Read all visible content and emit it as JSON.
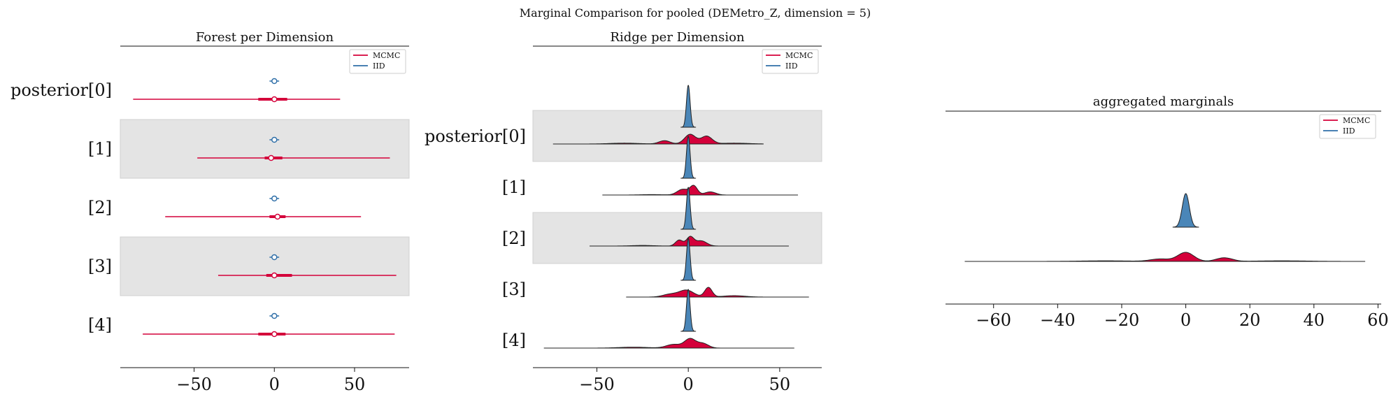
{
  "suptitle": "Marginal Comparison for pooled (DEMetro_Z, dimension = 5)",
  "colors": {
    "mcmc": "#d4003a",
    "iid": "#2f6fa8",
    "iid_fill": "#4a86b8",
    "band": "#e4e4e4",
    "outline": "#222222"
  },
  "chart_data": [
    {
      "type": "forest",
      "title": "Forest per Dimension",
      "row_labels": [
        "posterior[0]",
        "[1]",
        "[2]",
        "[3]",
        "[4]"
      ],
      "xlim": [
        -96,
        84
      ],
      "xticks": [
        -50,
        0,
        50
      ],
      "xtick_labels": [
        "−50",
        "0",
        "50"
      ],
      "legend": {
        "placement": "top-right",
        "entries": [
          "MCMC",
          "IID"
        ]
      },
      "series": [
        {
          "name": "MCMC",
          "color": "#d4003a",
          "lo": [
            -88,
            -48,
            -68,
            -35,
            -82
          ],
          "q25": [
            -10,
            -6,
            -3,
            -5,
            -10
          ],
          "median": [
            0,
            -2,
            2,
            0,
            0
          ],
          "q75": [
            8,
            5,
            7,
            11,
            7
          ],
          "hi": [
            41,
            72,
            54,
            76,
            75
          ]
        },
        {
          "name": "IID",
          "color": "#2f6fa8",
          "lo": [
            -3,
            -3,
            -3,
            -3,
            -3
          ],
          "q25": [
            -1,
            -1,
            -1,
            -1,
            -1
          ],
          "median": [
            0,
            0,
            0,
            0,
            0
          ],
          "q75": [
            1,
            1,
            1,
            1,
            1
          ],
          "hi": [
            3,
            3,
            3,
            3,
            3
          ]
        }
      ]
    },
    {
      "type": "ridge",
      "title": "Ridge per Dimension",
      "row_labels": [
        "posterior[0]",
        "[1]",
        "[2]",
        "[3]",
        "[4]"
      ],
      "xlim": [
        -85,
        73
      ],
      "xticks": [
        -50,
        0,
        50
      ],
      "xtick_labels": [
        "−50",
        "0",
        "50"
      ],
      "legend": {
        "placement": "top-right",
        "entries": [
          "MCMC",
          "IID"
        ]
      },
      "series": [
        {
          "name": "MCMC",
          "color": "#d4003a",
          "range": [
            [
              -74,
              41
            ],
            [
              -47,
              60
            ],
            [
              -54,
              55
            ],
            [
              -34,
              66
            ],
            [
              -79,
              58
            ]
          ],
          "peaks": [
            [
              [
                -13,
                0.12,
                3
              ],
              [
                1,
                0.35,
                3
              ],
              [
                10,
                0.28,
                3
              ],
              [
                -35,
                0.03,
                8
              ],
              [
                25,
                0.03,
                8
              ]
            ],
            [
              [
                -3,
                0.55,
                3
              ],
              [
                3,
                0.85,
                2
              ],
              [
                12,
                0.3,
                3
              ],
              [
                -20,
                0.04,
                6
              ]
            ],
            [
              [
                -5,
                0.4,
                2
              ],
              [
                1,
                0.6,
                2
              ],
              [
                7,
                0.35,
                3
              ],
              [
                -25,
                0.04,
                6
              ]
            ],
            [
              [
                -1,
                0.25,
                4
              ],
              [
                11,
                0.35,
                2
              ],
              [
                25,
                0.05,
                6
              ],
              [
                -10,
                0.1,
                4
              ]
            ],
            [
              [
                -8,
                0.12,
                4
              ],
              [
                1,
                0.3,
                3
              ],
              [
                8,
                0.15,
                3
              ],
              [
                -30,
                0.03,
                8
              ]
            ]
          ]
        },
        {
          "name": "IID",
          "color": "#2f6fa8",
          "range": [
            [
              -4,
              4
            ],
            [
              -4,
              4
            ],
            [
              -4,
              4
            ],
            [
              -4,
              4
            ],
            [
              -4,
              4
            ]
          ],
          "peaks": [
            [
              [
                0,
                1,
                1
              ]
            ],
            [
              [
                0,
                1,
                1
              ]
            ],
            [
              [
                0,
                1,
                1
              ]
            ],
            [
              [
                0,
                1,
                1
              ]
            ],
            [
              [
                0,
                1,
                1
              ]
            ]
          ]
        }
      ]
    },
    {
      "type": "area",
      "title": "aggregated marginals",
      "xlim": [
        -75,
        61
      ],
      "xticks": [
        -60,
        -40,
        -20,
        0,
        20,
        40,
        60
      ],
      "xtick_labels": [
        "−60",
        "−40",
        "−20",
        "0",
        "20",
        "40",
        "60"
      ],
      "legend": {
        "placement": "top-right",
        "entries": [
          "MCMC",
          "IID"
        ]
      },
      "series": [
        {
          "name": "MCMC",
          "color": "#d4003a",
          "range": [
            -69,
            56
          ],
          "peaks": [
            [
              0,
              0.3,
              2.5
            ],
            [
              12,
              0.12,
              2.5
            ],
            [
              -8,
              0.08,
              3
            ],
            [
              -25,
              0.02,
              8
            ],
            [
              30,
              0.02,
              8
            ]
          ]
        },
        {
          "name": "IID",
          "color": "#2f6fa8",
          "range": [
            -4,
            4
          ],
          "peaks": [
            [
              0,
              1,
              1.1
            ]
          ]
        }
      ]
    }
  ]
}
